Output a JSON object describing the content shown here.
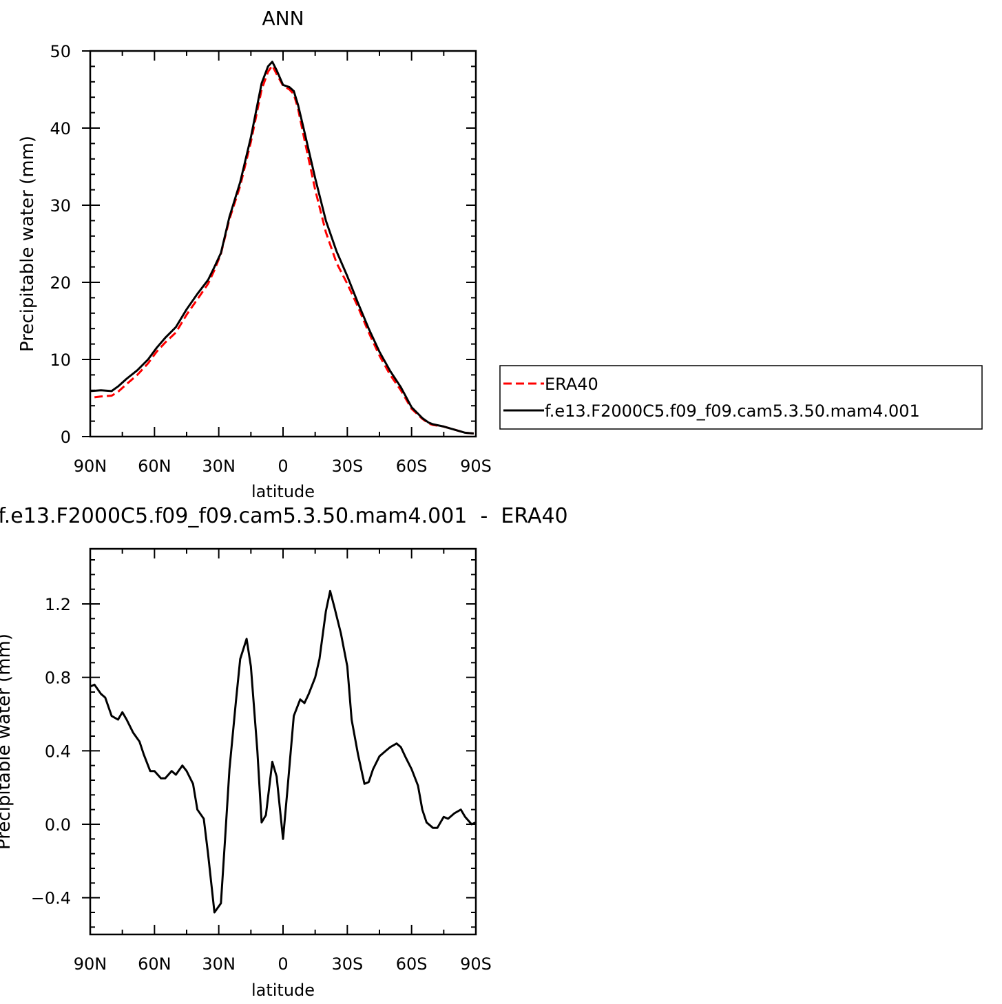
{
  "chart_data": [
    {
      "type": "line",
      "title": "ANN",
      "xlabel": "latitude",
      "ylabel": "Precipitable water (mm)",
      "xlim": [
        90,
        -90
      ],
      "ylim": [
        0,
        50
      ],
      "x_ticks": [
        {
          "value": 90,
          "label": "90N"
        },
        {
          "value": 60,
          "label": "60N"
        },
        {
          "value": 30,
          "label": "30N"
        },
        {
          "value": 0,
          "label": "0"
        },
        {
          "value": -30,
          "label": "30S"
        },
        {
          "value": -60,
          "label": "60S"
        },
        {
          "value": -90,
          "label": "90S"
        }
      ],
      "y_ticks": [
        {
          "value": 0,
          "label": "0"
        },
        {
          "value": 10,
          "label": "10"
        },
        {
          "value": 20,
          "label": "20"
        },
        {
          "value": 30,
          "label": "30"
        },
        {
          "value": 40,
          "label": "40"
        },
        {
          "value": 50,
          "label": "50"
        }
      ],
      "legend_position": "right",
      "series": [
        {
          "name": "ERA40",
          "color": "#ff0000",
          "dash": "dashed",
          "x": [
            88,
            85,
            80,
            77,
            73,
            68,
            63,
            59,
            55,
            50,
            45,
            40,
            35,
            32,
            29,
            25,
            20,
            15,
            10,
            7,
            5,
            3,
            0,
            -3,
            -5,
            -7,
            -10,
            -15,
            -20,
            -25,
            -30,
            -35,
            -40,
            -45,
            -50,
            -55,
            -60,
            -65,
            -68,
            -70,
            -75,
            -80,
            -85,
            -89
          ],
          "y": [
            5.1,
            5.2,
            5.3,
            5.8,
            6.8,
            8.0,
            9.5,
            11.0,
            12.2,
            13.5,
            15.8,
            17.8,
            19.8,
            21.6,
            23.7,
            28.2,
            32.5,
            38.2,
            45.0,
            47.3,
            48.1,
            47.0,
            45.5,
            45.0,
            44.4,
            42.5,
            38.5,
            32.0,
            26.5,
            22.5,
            19.8,
            16.8,
            13.5,
            10.5,
            8.0,
            6.0,
            3.6,
            2.3,
            1.7,
            1.5,
            1.3,
            0.9,
            0.5,
            0.4
          ]
        },
        {
          "name": "f.e13.F2000C5.f09_f09.cam5.3.50.mam4.001",
          "color": "#000000",
          "dash": "solid",
          "x": [
            90,
            85,
            80,
            77,
            73,
            68,
            63,
            59,
            55,
            50,
            45,
            40,
            35,
            32,
            29,
            25,
            20,
            15,
            10,
            7,
            5,
            3,
            0,
            -3,
            -5,
            -7,
            -10,
            -15,
            -20,
            -25,
            -30,
            -35,
            -40,
            -45,
            -50,
            -55,
            -60,
            -65,
            -68,
            -70,
            -75,
            -80,
            -85,
            -89
          ],
          "y": [
            5.9,
            6.0,
            5.9,
            6.5,
            7.5,
            8.6,
            10.0,
            11.5,
            12.8,
            14.2,
            16.5,
            18.5,
            20.3,
            22.0,
            23.8,
            28.5,
            33.0,
            38.8,
            45.8,
            48.0,
            48.6,
            47.5,
            45.6,
            45.3,
            44.8,
            43.0,
            39.5,
            33.5,
            28.0,
            24.0,
            20.8,
            17.3,
            14.0,
            11.0,
            8.5,
            6.4,
            3.8,
            2.4,
            1.8,
            1.6,
            1.3,
            0.9,
            0.5,
            0.4
          ]
        }
      ]
    },
    {
      "type": "line",
      "title": "f.e13.F2000C5.f09_f09.cam5.3.50.mam4.001  -  ERA40",
      "xlabel": "latitude",
      "ylabel": "Precipitable water (mm)",
      "xlim": [
        90,
        -90
      ],
      "ylim": [
        -0.6,
        1.5
      ],
      "x_ticks": [
        {
          "value": 90,
          "label": "90N"
        },
        {
          "value": 60,
          "label": "60N"
        },
        {
          "value": 30,
          "label": "30N"
        },
        {
          "value": 0,
          "label": "0"
        },
        {
          "value": -30,
          "label": "30S"
        },
        {
          "value": -60,
          "label": "60S"
        },
        {
          "value": -90,
          "label": "90S"
        }
      ],
      "y_ticks": [
        {
          "value": -0.4,
          "label": "−0.4"
        },
        {
          "value": 0.0,
          "label": "0.0"
        },
        {
          "value": 0.4,
          "label": "0.4"
        },
        {
          "value": 0.8,
          "label": "0.8"
        },
        {
          "value": 1.2,
          "label": "1.2"
        }
      ],
      "series": [
        {
          "name": "",
          "color": "#000000",
          "dash": "solid",
          "x": [
            90,
            88,
            85,
            83,
            80,
            77,
            75,
            73,
            70,
            67,
            65,
            62,
            60,
            57,
            55,
            52,
            50,
            47,
            45,
            42,
            40,
            37,
            35,
            32,
            29,
            27,
            25,
            22,
            20,
            17,
            15,
            12,
            10,
            8,
            5,
            3,
            0,
            -2,
            -5,
            -8,
            -10,
            -12,
            -15,
            -17,
            -20,
            -22,
            -24,
            -27,
            -30,
            -32,
            -35,
            -38,
            -40,
            -42,
            -45,
            -48,
            -50,
            -53,
            -55,
            -57,
            -60,
            -63,
            -65,
            -67,
            -70,
            -72,
            -75,
            -77,
            -80,
            -83,
            -85,
            -88,
            -90
          ],
          "y": [
            0.75,
            0.76,
            0.71,
            0.69,
            0.59,
            0.57,
            0.61,
            0.57,
            0.5,
            0.45,
            0.38,
            0.29,
            0.29,
            0.25,
            0.25,
            0.29,
            0.27,
            0.32,
            0.29,
            0.22,
            0.08,
            0.03,
            -0.16,
            -0.48,
            -0.43,
            -0.07,
            0.3,
            0.67,
            0.9,
            1.01,
            0.86,
            0.4,
            0.01,
            0.05,
            0.34,
            0.26,
            -0.08,
            0.18,
            0.59,
            0.68,
            0.66,
            0.71,
            0.8,
            0.9,
            1.16,
            1.27,
            1.18,
            1.04,
            0.86,
            0.57,
            0.38,
            0.22,
            0.23,
            0.3,
            0.37,
            0.4,
            0.42,
            0.44,
            0.42,
            0.37,
            0.3,
            0.21,
            0.08,
            0.01,
            -0.02,
            -0.02,
            0.04,
            0.03,
            0.06,
            0.08,
            0.04,
            0.0,
            0.01
          ]
        }
      ]
    }
  ]
}
